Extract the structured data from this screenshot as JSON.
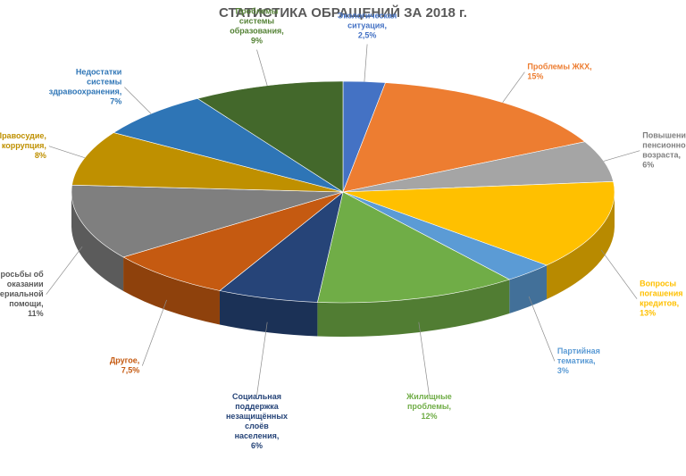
{
  "chart_data": {
    "type": "pie",
    "title": "СТАТИСТИКА ОБРАЩЕНИЙ ЗА 2018 г.",
    "slices": [
      {
        "label": "Экологическая ситуация,",
        "value_text": "2,5%",
        "value": 2.5,
        "color": "#4472C4",
        "text_color": "#4472C4"
      },
      {
        "label": "Проблемы ЖКХ,",
        "value_text": "15%",
        "value": 15,
        "color": "#ED7D31",
        "text_color": "#ED7D31"
      },
      {
        "label": "Повышение пенсионного возраста,",
        "value_text": "6%",
        "value": 6,
        "color": "#A5A5A5",
        "text_color": "#7F7F7F"
      },
      {
        "label": "Вопросы погашения кредитов,",
        "value_text": "13%",
        "value": 13,
        "color": "#FFC000",
        "text_color": "#FFC000"
      },
      {
        "label": "Партийная тематика,",
        "value_text": "3%",
        "value": 3,
        "color": "#5B9BD5",
        "text_color": "#5B9BD5"
      },
      {
        "label": "Жилищные проблемы,",
        "value_text": "12%",
        "value": 12,
        "color": "#70AD47",
        "text_color": "#70AD47"
      },
      {
        "label": "Социальная поддержка незащищённых слоёв населения,",
        "value_text": "6%",
        "value": 6,
        "color": "#264478",
        "text_color": "#264478"
      },
      {
        "label": "Другое,",
        "value_text": "7,5%",
        "value": 7.5,
        "color": "#C55A11",
        "text_color": "#C55A11"
      },
      {
        "label": "Просьбы об оказании материальной помощи,",
        "value_text": "11%",
        "value": 11,
        "color": "#7F7F7F",
        "text_color": "#595959"
      },
      {
        "label": "Правосудие, коррупция,",
        "value_text": "8%",
        "value": 8,
        "color": "#BF9000",
        "text_color": "#BF9000"
      },
      {
        "label": "Недостатки системы здравоохранения,",
        "value_text": "7%",
        "value": 7,
        "color": "#2E75B6",
        "text_color": "#2E75B6"
      },
      {
        "label": "Проблемы системы образования,",
        "value_text": "9%",
        "value": 9,
        "color": "#43682B",
        "text_color": "#548235"
      }
    ]
  }
}
